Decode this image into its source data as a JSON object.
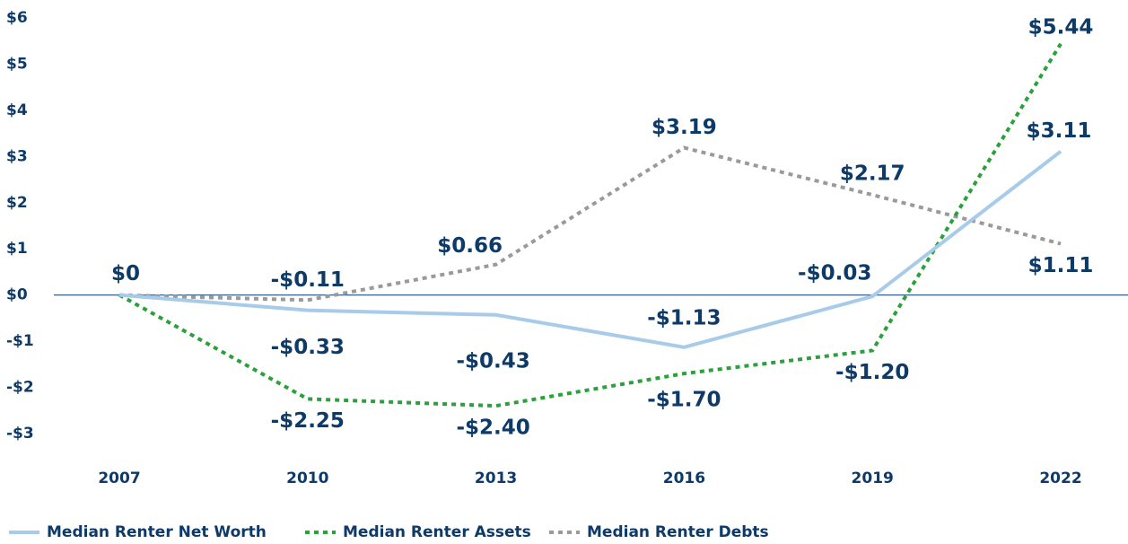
{
  "chart_data": {
    "type": "line",
    "categories": [
      "2007",
      "2010",
      "2013",
      "2016",
      "2019",
      "2022"
    ],
    "series": [
      {
        "name": "Median Renter Net Worth",
        "color": "#a7cbe9",
        "dash": "solid",
        "values": [
          0,
          -0.33,
          -0.43,
          -1.13,
          -0.03,
          3.11
        ],
        "value_labels": [
          "$0",
          "-$0.33",
          "-$0.43",
          "-$1.13",
          "-$0.03",
          "$3.11"
        ]
      },
      {
        "name": "Median Renter Assets",
        "color": "#2aa13a",
        "dash": "dotted",
        "values": [
          0,
          -2.25,
          -2.4,
          -1.7,
          -1.2,
          5.44
        ],
        "value_labels": [
          null,
          "-$2.25",
          "-$2.40",
          "-$1.70",
          "-$1.20",
          "$5.44"
        ]
      },
      {
        "name": "Median Renter Debts",
        "color": "#9a9a9a",
        "dash": "dotted",
        "values": [
          0,
          -0.11,
          0.66,
          3.19,
          2.17,
          1.11
        ],
        "value_labels": [
          null,
          "-$0.11",
          "$0.66",
          "$3.19",
          "$2.17",
          "$1.11"
        ]
      }
    ],
    "ylim": [
      -3,
      6
    ],
    "yticks": [
      {
        "value": 6,
        "label": "$6"
      },
      {
        "value": 5,
        "label": "$5"
      },
      {
        "value": 4,
        "label": "$4"
      },
      {
        "value": 3,
        "label": "$3"
      },
      {
        "value": 2,
        "label": "$2"
      },
      {
        "value": 1,
        "label": "$1"
      },
      {
        "value": 0,
        "label": "$0"
      },
      {
        "value": -1,
        "label": "-$1"
      },
      {
        "value": -2,
        "label": "-$2"
      },
      {
        "value": -3,
        "label": "-$3"
      }
    ],
    "grid": false,
    "legend": "bottom-left"
  }
}
